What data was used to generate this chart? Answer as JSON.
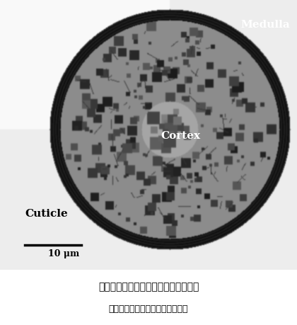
{
  "title_line1": "図２　日本人毛の断面の電子顕微鏡像",
  "title_line2": "（横断面：軸方向に垂直な断面）",
  "label_medulla": "Medulla",
  "label_cortex": "Cortex",
  "label_cuticle": "Cuticle",
  "scale_text": "10 μm",
  "bg_color": "#ffffff",
  "fig_width": 4.2,
  "fig_height": 4.6,
  "dpi": 100
}
